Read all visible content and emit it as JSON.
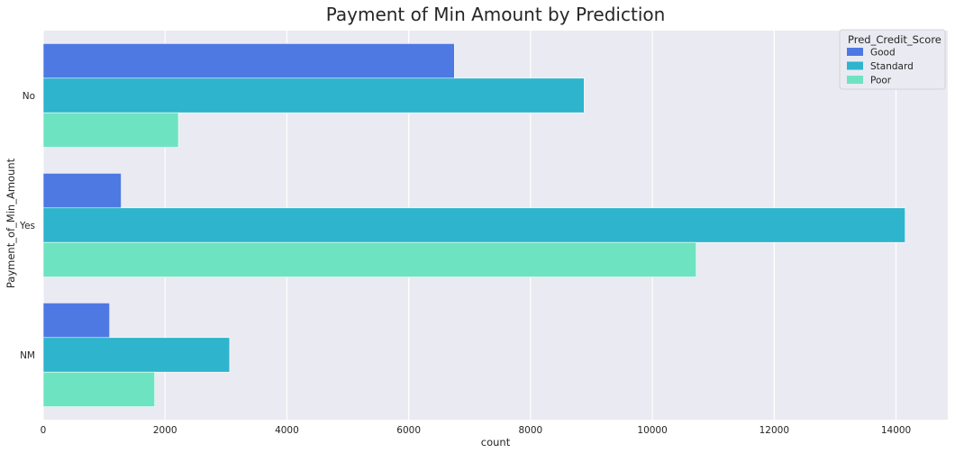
{
  "chart_data": {
    "type": "bar",
    "orientation": "horizontal",
    "title": "Payment of Min Amount by Prediction",
    "xlabel": "count",
    "ylabel": "Payment_of_Min_Amount",
    "categories": [
      "No",
      "Yes",
      "NM"
    ],
    "xlim": [
      0,
      14850
    ],
    "xticks": [
      0,
      2000,
      4000,
      6000,
      8000,
      10000,
      12000,
      14000
    ],
    "grid": true,
    "legend": {
      "title": "Pred_Credit_Score",
      "placement": "top-right"
    },
    "series": [
      {
        "name": "Good",
        "color": "#4e79e3",
        "values": [
          6750,
          1280,
          1090
        ]
      },
      {
        "name": "Standard",
        "color": "#2eb4cc",
        "values": [
          8880,
          14150,
          3060
        ]
      },
      {
        "name": "Poor",
        "color": "#6ee3c2",
        "values": [
          2220,
          10720,
          1830
        ]
      }
    ],
    "colors": {
      "background": "#eaeaf2",
      "grid": "#ffffff"
    }
  }
}
